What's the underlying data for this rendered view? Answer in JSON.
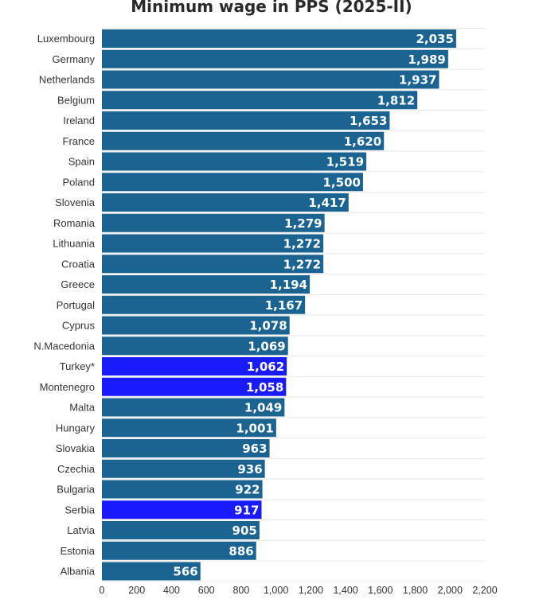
{
  "chart_data": {
    "type": "bar",
    "orientation": "horizontal",
    "title": "Minimum wage in PPS (2025-II)",
    "xlabel": "",
    "ylabel": "",
    "xlim": [
      0,
      2200
    ],
    "ticks": [
      0,
      200,
      400,
      600,
      800,
      1000,
      1200,
      1400,
      1600,
      1800,
      2000,
      2200
    ],
    "tick_labels": [
      "0",
      "200",
      "400",
      "600",
      "800",
      "1,000",
      "1,200",
      "1,400",
      "1,600",
      "1,800",
      "2,000",
      "2,200"
    ],
    "grid": true,
    "colors": {
      "default": "#1b6390",
      "highlight": "#1a1aff"
    },
    "categories": [
      "Luxembourg",
      "Germany",
      "Netherlands",
      "Belgium",
      "Ireland",
      "France",
      "Spain",
      "Poland",
      "Slovenia",
      "Romania",
      "Lithuania",
      "Croatia",
      "Greece",
      "Portugal",
      "Cyprus",
      "N.Macedonia",
      "Turkey*",
      "Montenegro",
      "Malta",
      "Hungary",
      "Slovakia",
      "Czechia",
      "Bulgaria",
      "Serbia",
      "Latvia",
      "Estonia",
      "Albania"
    ],
    "values": [
      2035,
      1989,
      1937,
      1812,
      1653,
      1620,
      1519,
      1500,
      1417,
      1279,
      1272,
      1272,
      1194,
      1167,
      1078,
      1069,
      1062,
      1058,
      1049,
      1001,
      963,
      936,
      922,
      917,
      905,
      886,
      566
    ],
    "value_labels": [
      "2,035",
      "1,989",
      "1,937",
      "1,812",
      "1,653",
      "1,620",
      "1,519",
      "1,500",
      "1,417",
      "1,279",
      "1,272",
      "1,272",
      "1,194",
      "1,167",
      "1,078",
      "1,069",
      "1,062",
      "1,058",
      "1,049",
      "1,001",
      "963",
      "936",
      "922",
      "917",
      "905",
      "886",
      "566"
    ],
    "highlighted": [
      "Turkey*",
      "Montenegro",
      "Serbia"
    ]
  }
}
